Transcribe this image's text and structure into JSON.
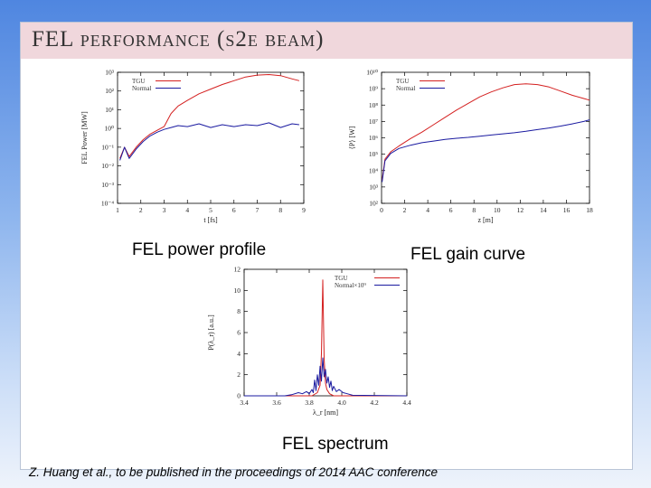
{
  "slide": {
    "title": "FEL performance (s2e beam)",
    "captions": {
      "power": "FEL power profile",
      "gain": "FEL gain curve",
      "spectrum": "FEL spectrum"
    },
    "citation": "Z. Huang et al.,  to be published in the proceedings of 2014 AAC conference"
  },
  "colors": {
    "tgu": "#d42020",
    "normal": "#1a1aa0",
    "title_bar": "#f0d7dc"
  },
  "chart_data": [
    {
      "type": "line",
      "name": "power",
      "xlabel": "t [fs]",
      "ylabel": "FEL Power [MW]",
      "xlim": [
        1,
        9
      ],
      "ylim_log10": [
        -4,
        3
      ],
      "y_scale": "log",
      "xticks": [
        "1",
        "2",
        "3",
        "4",
        "5",
        "6",
        "7",
        "8",
        "9"
      ],
      "yticks": [
        "10⁻⁴",
        "10⁻³",
        "10⁻²",
        "10⁻¹",
        "10⁰",
        "10¹",
        "10²",
        "10³"
      ],
      "legend": [
        "TGU",
        "Normal"
      ],
      "legend_position": "top-left",
      "series": [
        {
          "name": "TGU",
          "x": [
            1.1,
            1.3,
            1.5,
            1.8,
            2.1,
            2.4,
            2.7,
            3.0,
            3.3,
            3.6,
            4.0,
            4.5,
            5.0,
            5.5,
            6.0,
            6.5,
            7.0,
            7.5,
            8.0,
            8.5,
            8.8
          ],
          "y_log10": [
            -1.6,
            -1.0,
            -1.5,
            -1.0,
            -0.6,
            -0.3,
            -0.1,
            0.1,
            0.8,
            1.2,
            1.5,
            1.85,
            2.1,
            2.35,
            2.55,
            2.75,
            2.85,
            2.88,
            2.82,
            2.65,
            2.55
          ]
        },
        {
          "name": "Normal",
          "x": [
            1.1,
            1.3,
            1.5,
            1.8,
            2.1,
            2.4,
            2.7,
            3.0,
            3.3,
            3.6,
            4.0,
            4.5,
            5.0,
            5.5,
            6.0,
            6.5,
            7.0,
            7.5,
            8.0,
            8.5,
            8.8
          ],
          "y_log10": [
            -1.7,
            -1.0,
            -1.6,
            -1.1,
            -0.7,
            -0.4,
            -0.2,
            -0.05,
            0.05,
            0.15,
            0.1,
            0.25,
            0.05,
            0.2,
            0.1,
            0.2,
            0.15,
            0.3,
            0.05,
            0.25,
            0.2
          ]
        }
      ]
    },
    {
      "type": "line",
      "name": "gain",
      "xlabel": "z [m]",
      "ylabel": "⟨P⟩ [W]",
      "xlim": [
        0,
        18
      ],
      "ylim_log10": [
        2,
        10
      ],
      "y_scale": "log",
      "xticks": [
        "0",
        "2",
        "4",
        "6",
        "8",
        "10",
        "12",
        "14",
        "16",
        "18"
      ],
      "yticks": [
        "10²",
        "10³",
        "10⁴",
        "10⁵",
        "10⁶",
        "10⁷",
        "10⁸",
        "10⁹",
        "10¹⁰"
      ],
      "legend": [
        "TGU",
        "Normal"
      ],
      "legend_position": "top-left",
      "series": [
        {
          "name": "TGU",
          "x": [
            0.05,
            0.3,
            0.8,
            1.5,
            2.5,
            3.5,
            4.5,
            5.5,
            6.5,
            7.5,
            8.5,
            9.5,
            10.5,
            11.5,
            12.5,
            13.5,
            14.5,
            15.5,
            16.5,
            17.5,
            18
          ],
          "y_log10": [
            3.4,
            4.7,
            5.15,
            5.5,
            5.95,
            6.35,
            6.8,
            7.25,
            7.7,
            8.1,
            8.5,
            8.8,
            9.05,
            9.25,
            9.3,
            9.25,
            9.1,
            8.85,
            8.6,
            8.4,
            8.3
          ]
        },
        {
          "name": "Normal",
          "x": [
            0.05,
            0.3,
            0.8,
            1.5,
            2.5,
            3.5,
            4.5,
            5.5,
            6.5,
            7.5,
            8.5,
            9.5,
            10.5,
            11.5,
            12.5,
            13.5,
            14.5,
            15.5,
            16.5,
            17.5,
            18
          ],
          "y_log10": [
            3.3,
            4.6,
            5.05,
            5.35,
            5.55,
            5.7,
            5.8,
            5.9,
            5.97,
            6.03,
            6.1,
            6.17,
            6.24,
            6.31,
            6.4,
            6.5,
            6.6,
            6.72,
            6.85,
            7.0,
            7.1
          ]
        }
      ]
    },
    {
      "type": "line",
      "name": "spectrum",
      "xlabel": "λ_r [nm]",
      "ylabel": "P(λ_r) [a.u.]",
      "xlim": [
        3.3,
        4.5
      ],
      "ylim": [
        0,
        12
      ],
      "xticks": [
        "3.4",
        "3.6",
        "3.8",
        "4.0",
        "4.2",
        "4.4"
      ],
      "yticks": [
        "0",
        "2",
        "4",
        "6",
        "8",
        "10",
        "12"
      ],
      "legend": [
        "TGU",
        "Normal×10⁹"
      ],
      "legend_position": "top-right",
      "series": [
        {
          "name": "TGU",
          "x": [
            3.3,
            3.8,
            3.84,
            3.86,
            3.87,
            3.88,
            3.89,
            3.9,
            3.91,
            3.93,
            3.96,
            4.5
          ],
          "y": [
            0,
            0,
            0.3,
            1.0,
            4.0,
            11.0,
            3.5,
            1.2,
            0.6,
            0.2,
            0,
            0
          ]
        },
        {
          "name": "Normal×10⁹",
          "x": [
            3.3,
            3.6,
            3.65,
            3.7,
            3.73,
            3.76,
            3.78,
            3.8,
            3.81,
            3.82,
            3.83,
            3.84,
            3.85,
            3.86,
            3.87,
            3.88,
            3.89,
            3.9,
            3.91,
            3.92,
            3.93,
            3.94,
            3.95,
            3.96,
            3.98,
            4.0,
            4.03,
            4.06,
            4.1,
            4.5
          ],
          "y": [
            0,
            0,
            0.1,
            0.3,
            0.2,
            0.4,
            0.2,
            0.6,
            0.3,
            1.5,
            0.5,
            2.0,
            1.0,
            2.8,
            1.4,
            3.6,
            1.8,
            2.5,
            1.2,
            1.8,
            0.8,
            1.4,
            0.5,
            0.9,
            0.4,
            0.6,
            0.3,
            0.2,
            0.05,
            0
          ]
        }
      ]
    }
  ]
}
